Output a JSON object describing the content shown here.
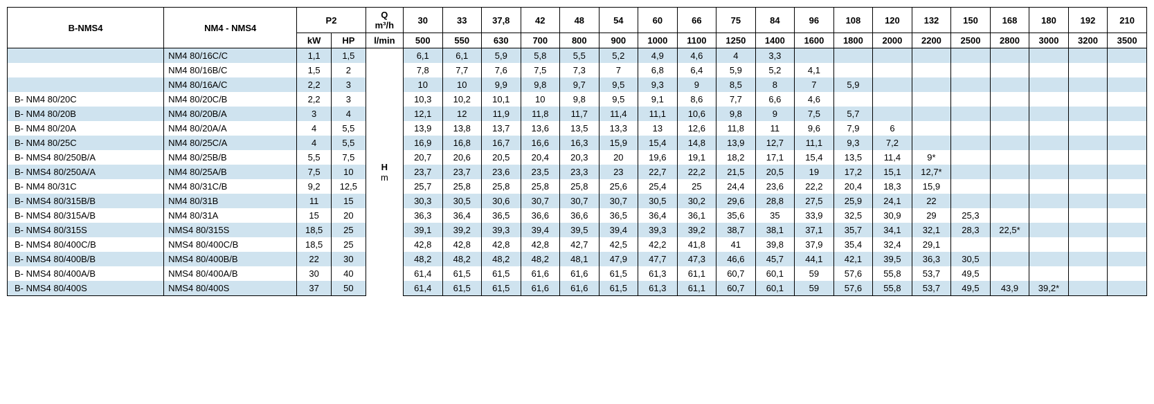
{
  "colors": {
    "zebra": "#cfe3ef",
    "border": "#000000",
    "background": "#ffffff",
    "text": "#000000"
  },
  "headers": {
    "col_b": "B-NMS4",
    "col_nm": "NM4 - NMS4",
    "p2": "P2",
    "kw": "kW",
    "hp": "HP",
    "q_top": "Q",
    "q_unit_top": "m³/h",
    "q_unit_bot": "l/min",
    "h_label_top": "H",
    "h_label_bot": "m"
  },
  "flow_m3h": [
    "30",
    "33",
    "37,8",
    "42",
    "48",
    "54",
    "60",
    "66",
    "75",
    "84",
    "96",
    "108",
    "120",
    "132",
    "150",
    "168",
    "180",
    "192",
    "210"
  ],
  "flow_lmin": [
    "500",
    "550",
    "630",
    "700",
    "800",
    "900",
    "1000",
    "1100",
    "1250",
    "1400",
    "1600",
    "1800",
    "2000",
    "2200",
    "2500",
    "2800",
    "3000",
    "3200",
    "3500"
  ],
  "rows": [
    {
      "b": "",
      "nm": "NM4 80/16C/C",
      "kw": "1,1",
      "hp": "1,5",
      "v": [
        "6,1",
        "6,1",
        "5,9",
        "5,8",
        "5,5",
        "5,2",
        "4,9",
        "4,6",
        "4",
        "3,3",
        "",
        "",
        "",
        "",
        "",
        "",
        "",
        "",
        ""
      ]
    },
    {
      "b": "",
      "nm": "NM4 80/16B/C",
      "kw": "1,5",
      "hp": "2",
      "v": [
        "7,8",
        "7,7",
        "7,6",
        "7,5",
        "7,3",
        "7",
        "6,8",
        "6,4",
        "5,9",
        "5,2",
        "4,1",
        "",
        "",
        "",
        "",
        "",
        "",
        "",
        ""
      ]
    },
    {
      "b": "",
      "nm": "NM4 80/16A/C",
      "kw": "2,2",
      "hp": "3",
      "v": [
        "10",
        "10",
        "9,9",
        "9,8",
        "9,7",
        "9,5",
        "9,3",
        "9",
        "8,5",
        "8",
        "7",
        "5,9",
        "",
        "",
        "",
        "",
        "",
        "",
        ""
      ]
    },
    {
      "b": "B- NM4 80/20C",
      "nm": "NM4 80/20C/B",
      "kw": "2,2",
      "hp": "3",
      "v": [
        "10,3",
        "10,2",
        "10,1",
        "10",
        "9,8",
        "9,5",
        "9,1",
        "8,6",
        "7,7",
        "6,6",
        "4,6",
        "",
        "",
        "",
        "",
        "",
        "",
        "",
        ""
      ]
    },
    {
      "b": "B- NM4 80/20B",
      "nm": "NM4 80/20B/A",
      "kw": "3",
      "hp": "4",
      "v": [
        "12,1",
        "12",
        "11,9",
        "11,8",
        "11,7",
        "11,4",
        "11,1",
        "10,6",
        "9,8",
        "9",
        "7,5",
        "5,7",
        "",
        "",
        "",
        "",
        "",
        "",
        ""
      ]
    },
    {
      "b": "B- NM4 80/20A",
      "nm": "NM4 80/20A/A",
      "kw": "4",
      "hp": "5,5",
      "v": [
        "13,9",
        "13,8",
        "13,7",
        "13,6",
        "13,5",
        "13,3",
        "13",
        "12,6",
        "11,8",
        "11",
        "9,6",
        "7,9",
        "6",
        "",
        "",
        "",
        "",
        "",
        ""
      ]
    },
    {
      "b": "B- NM4 80/25C",
      "nm": "NM4 80/25C/A",
      "kw": "4",
      "hp": "5,5",
      "v": [
        "16,9",
        "16,8",
        "16,7",
        "16,6",
        "16,3",
        "15,9",
        "15,4",
        "14,8",
        "13,9",
        "12,7",
        "11,1",
        "9,3",
        "7,2",
        "",
        "",
        "",
        "",
        "",
        ""
      ]
    },
    {
      "b": "B- NMS4 80/250B/A",
      "nm": "NM4 80/25B/B",
      "kw": "5,5",
      "hp": "7,5",
      "v": [
        "20,7",
        "20,6",
        "20,5",
        "20,4",
        "20,3",
        "20",
        "19,6",
        "19,1",
        "18,2",
        "17,1",
        "15,4",
        "13,5",
        "11,4",
        "9*",
        "",
        "",
        "",
        "",
        ""
      ]
    },
    {
      "b": "B- NMS4 80/250A/A",
      "nm": "NM4 80/25A/B",
      "kw": "7,5",
      "hp": "10",
      "v": [
        "23,7",
        "23,7",
        "23,6",
        "23,5",
        "23,3",
        "23",
        "22,7",
        "22,2",
        "21,5",
        "20,5",
        "19",
        "17,2",
        "15,1",
        "12,7*",
        "",
        "",
        "",
        "",
        ""
      ]
    },
    {
      "b": "B- NM4 80/31C",
      "nm": "NM4 80/31C/B",
      "kw": "9,2",
      "hp": "12,5",
      "v": [
        "25,7",
        "25,8",
        "25,8",
        "25,8",
        "25,8",
        "25,6",
        "25,4",
        "25",
        "24,4",
        "23,6",
        "22,2",
        "20,4",
        "18,3",
        "15,9",
        "",
        "",
        "",
        "",
        ""
      ]
    },
    {
      "b": "B- NMS4 80/315B/B",
      "nm": "NM4 80/31B",
      "kw": "11",
      "hp": "15",
      "v": [
        "30,3",
        "30,5",
        "30,6",
        "30,7",
        "30,7",
        "30,7",
        "30,5",
        "30,2",
        "29,6",
        "28,8",
        "27,5",
        "25,9",
        "24,1",
        "22",
        "",
        "",
        "",
        "",
        ""
      ]
    },
    {
      "b": "B- NMS4 80/315A/B",
      "nm": "NM4 80/31A",
      "kw": "15",
      "hp": "20",
      "v": [
        "36,3",
        "36,4",
        "36,5",
        "36,6",
        "36,6",
        "36,5",
        "36,4",
        "36,1",
        "35,6",
        "35",
        "33,9",
        "32,5",
        "30,9",
        "29",
        "25,3",
        "",
        "",
        "",
        ""
      ]
    },
    {
      "b": "B- NMS4 80/315S",
      "nm": "NMS4 80/315S",
      "kw": "18,5",
      "hp": "25",
      "v": [
        "39,1",
        "39,2",
        "39,3",
        "39,4",
        "39,5",
        "39,4",
        "39,3",
        "39,2",
        "38,7",
        "38,1",
        "37,1",
        "35,7",
        "34,1",
        "32,1",
        "28,3",
        "22,5*",
        "",
        "",
        ""
      ]
    },
    {
      "b": "B- NMS4 80/400C/B",
      "nm": "NMS4 80/400C/B",
      "kw": "18,5",
      "hp": "25",
      "v": [
        "42,8",
        "42,8",
        "42,8",
        "42,8",
        "42,7",
        "42,5",
        "42,2",
        "41,8",
        "41",
        "39,8",
        "37,9",
        "35,4",
        "32,4",
        "29,1",
        "",
        "",
        "",
        "",
        ""
      ]
    },
    {
      "b": "B- NMS4 80/400B/B",
      "nm": "NMS4 80/400B/B",
      "kw": "22",
      "hp": "30",
      "v": [
        "48,2",
        "48,2",
        "48,2",
        "48,2",
        "48,1",
        "47,9",
        "47,7",
        "47,3",
        "46,6",
        "45,7",
        "44,1",
        "42,1",
        "39,5",
        "36,3",
        "30,5",
        "",
        "",
        "",
        ""
      ]
    },
    {
      "b": "B- NMS4 80/400A/B",
      "nm": "NMS4 80/400A/B",
      "kw": "30",
      "hp": "40",
      "v": [
        "61,4",
        "61,5",
        "61,5",
        "61,6",
        "61,6",
        "61,5",
        "61,3",
        "61,1",
        "60,7",
        "60,1",
        "59",
        "57,6",
        "55,8",
        "53,7",
        "49,5",
        "",
        "",
        "",
        ""
      ]
    },
    {
      "b": "B- NMS4 80/400S",
      "nm": "NMS4 80/400S",
      "kw": "37",
      "hp": "50",
      "v": [
        "61,4",
        "61,5",
        "61,5",
        "61,6",
        "61,6",
        "61,5",
        "61,3",
        "61,1",
        "60,7",
        "60,1",
        "59",
        "57,6",
        "55,8",
        "53,7",
        "49,5",
        "43,9",
        "39,2*",
        "",
        ""
      ]
    }
  ]
}
